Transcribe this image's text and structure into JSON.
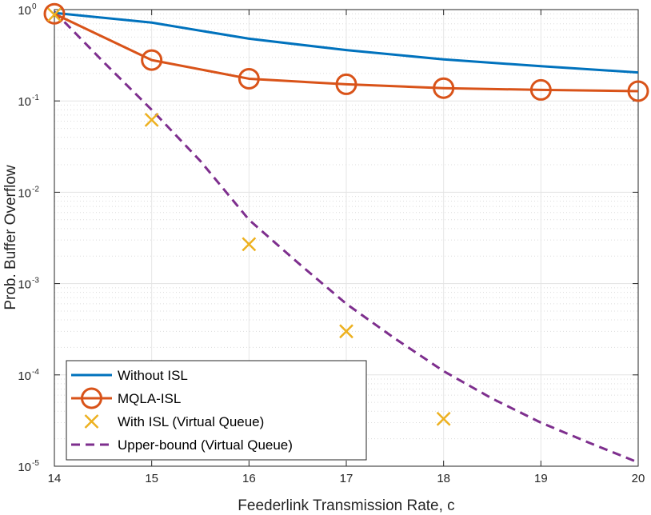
{
  "chart_data": {
    "type": "line",
    "xscale": "linear",
    "yscale": "log",
    "xlabel": "Feederlink Transmission Rate, c",
    "ylabel": "Prob. Buffer Overflow",
    "xlim": [
      14,
      20
    ],
    "ylim": [
      1e-05,
      1
    ],
    "xticks": [
      "14",
      "15",
      "16",
      "17",
      "18",
      "19",
      "20"
    ],
    "yticks": [
      {
        "base": "10",
        "exp": "-5"
      },
      {
        "base": "10",
        "exp": "-4"
      },
      {
        "base": "10",
        "exp": "-3"
      },
      {
        "base": "10",
        "exp": "-2"
      },
      {
        "base": "10",
        "exp": "-1"
      },
      {
        "base": "10",
        "exp": "0"
      }
    ],
    "grid": true,
    "minor_grid": true,
    "legend_position": "bottom-left",
    "series": [
      {
        "name": "Without ISL",
        "style": "solid",
        "marker": "none",
        "color": "#0072BD",
        "x": [
          14,
          15,
          16,
          17,
          18,
          19,
          20
        ],
        "y": [
          0.92,
          0.72,
          0.48,
          0.36,
          0.285,
          0.24,
          0.205
        ]
      },
      {
        "name": "MQLA-ISL",
        "style": "solid",
        "marker": "circle",
        "color": "#D95319",
        "x": [
          14,
          15,
          16,
          17,
          18,
          19,
          20
        ],
        "y": [
          0.9,
          0.28,
          0.175,
          0.152,
          0.138,
          0.132,
          0.128
        ]
      },
      {
        "name": "With ISL (Virtual Queue)",
        "style": "none",
        "marker": "x",
        "color": "#EDB120",
        "x": [
          14,
          15,
          16,
          17,
          18
        ],
        "y": [
          0.88,
          0.062,
          0.0027,
          0.0003,
          3.3e-05
        ]
      },
      {
        "name": "Upper-bound (Virtual Queue)",
        "style": "dashed",
        "marker": "none",
        "color": "#7E2F8E",
        "x": [
          14,
          14.5,
          15,
          15.5,
          16,
          16.5,
          17,
          17.5,
          18,
          18.5,
          19,
          19.5,
          20
        ],
        "y": [
          0.95,
          0.27,
          0.08,
          0.022,
          0.005,
          0.0017,
          0.0006,
          0.00025,
          0.00011,
          5.5e-05,
          3e-05,
          1.8e-05,
          1.1e-05
        ]
      }
    ]
  }
}
